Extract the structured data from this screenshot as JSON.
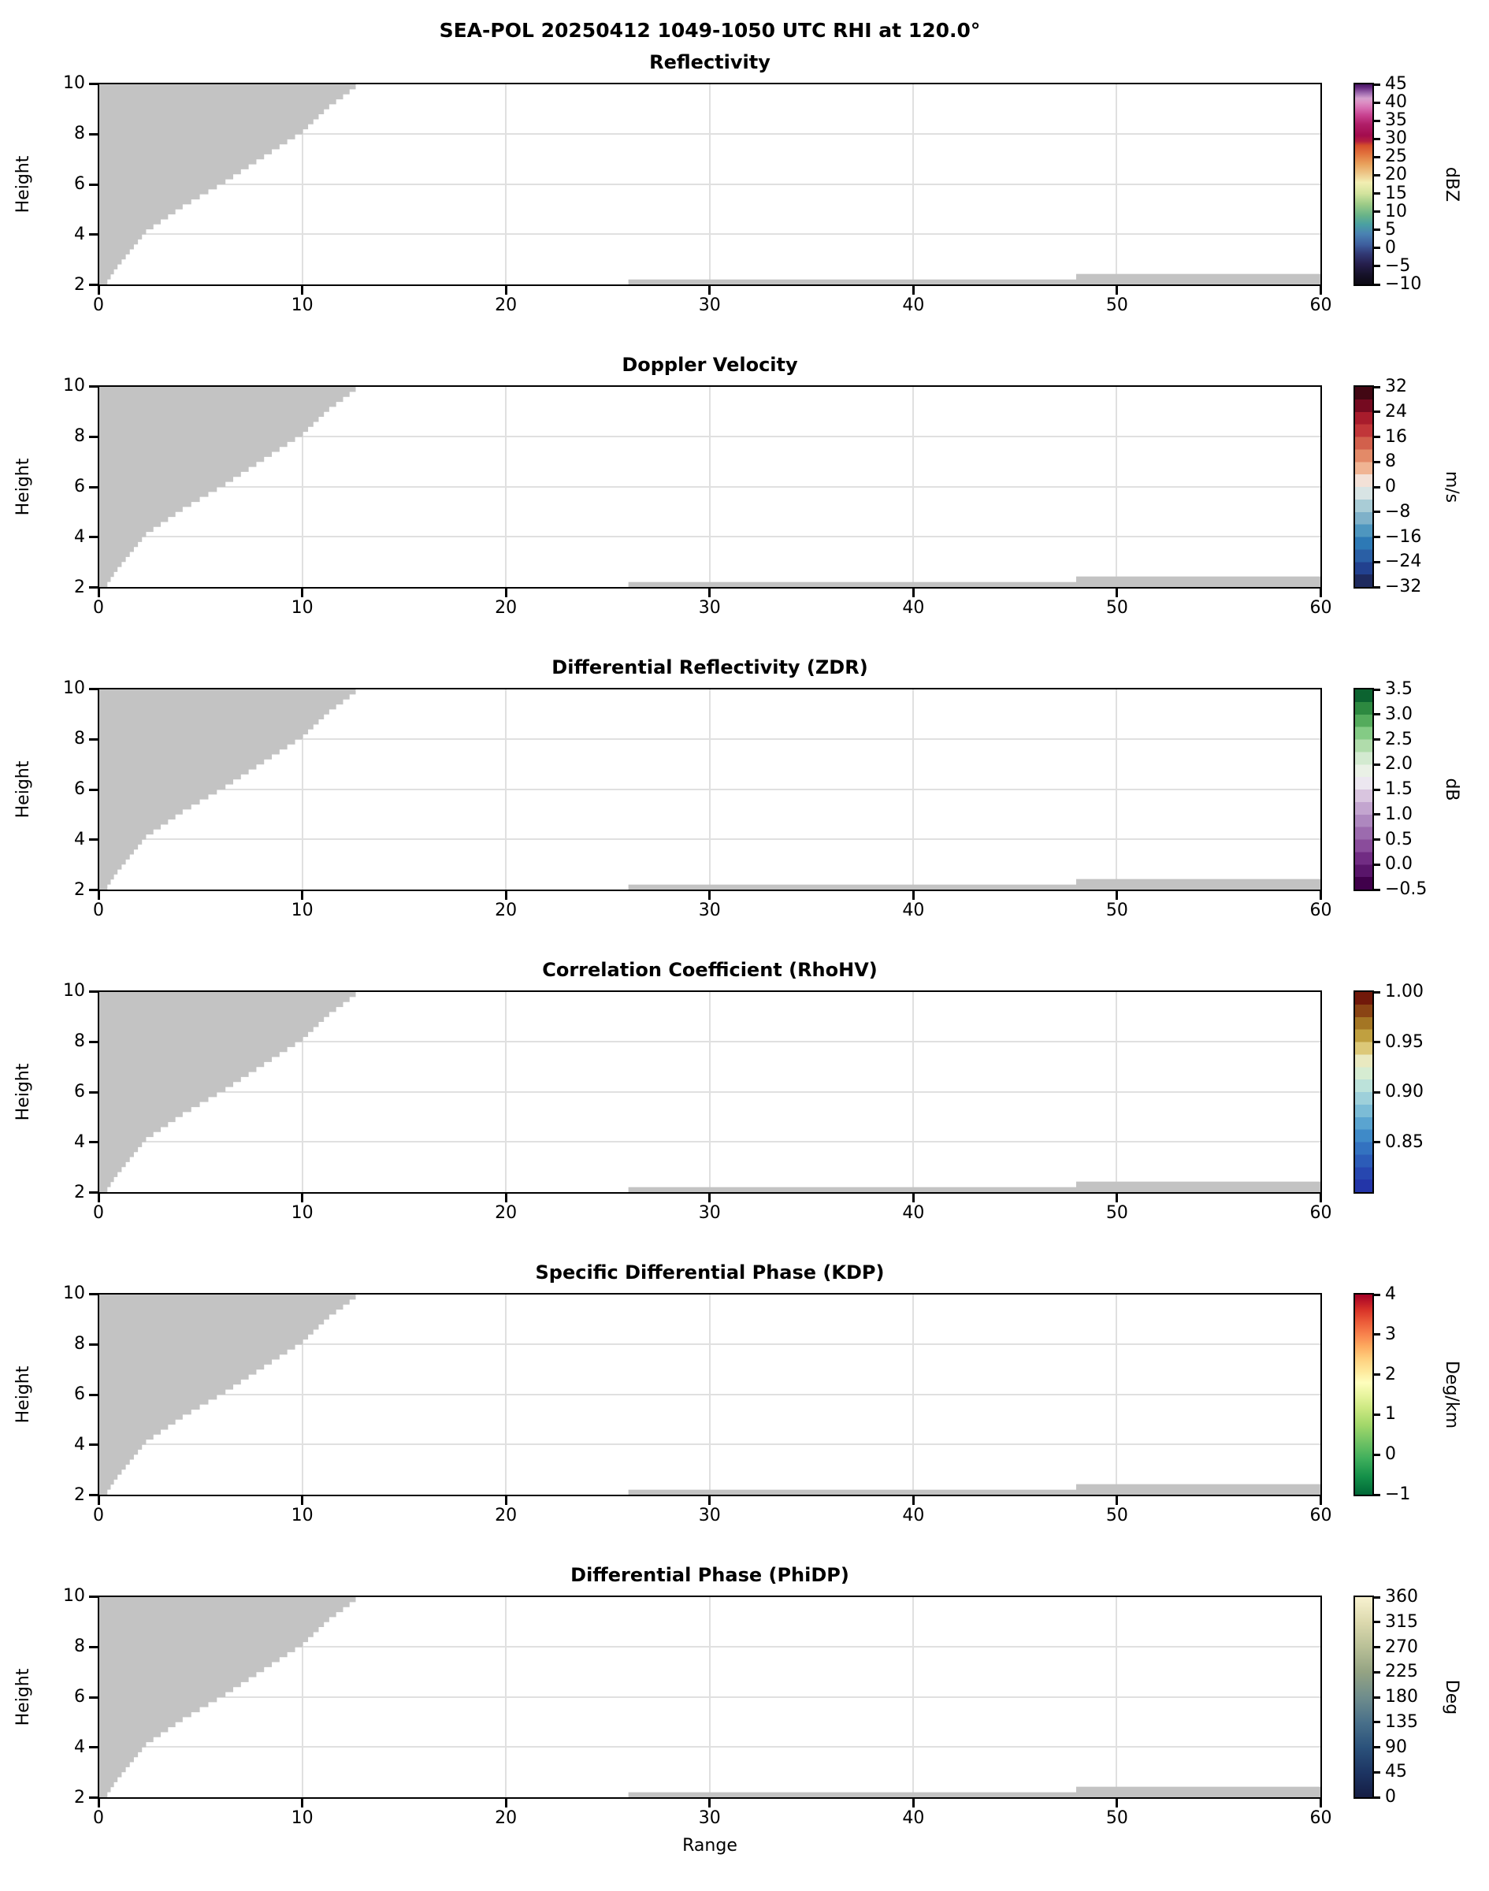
{
  "chart_data": {
    "type": "heatmap",
    "suptitle": "SEA-POL 20250412 1049-1050 UTC RHI at 120.0°",
    "xlabel": "Range",
    "ylabel": "Height",
    "xlim": [
      0,
      60
    ],
    "ylim": [
      2,
      10
    ],
    "x_ticks": [
      0,
      10,
      20,
      30,
      40,
      50,
      60
    ],
    "y_ticks": [
      2,
      4,
      6,
      8,
      10
    ],
    "grid": true,
    "background": "#ffffff",
    "nodata_color": "#c3c3c3",
    "nodata_regions": {
      "wedge_boundary_x_by_height": [
        [
          0.4,
          2
        ],
        [
          0.8,
          2.5
        ],
        [
          1.3,
          3
        ],
        [
          2.3,
          4
        ],
        [
          4.1,
          5
        ],
        [
          6.2,
          6
        ],
        [
          8.1,
          7
        ],
        [
          10.0,
          8
        ],
        [
          11.3,
          9
        ],
        [
          12.15,
          9.5
        ],
        [
          12.9,
          10
        ]
      ],
      "wedge_step_dh": 0.2,
      "bottom_strips": [
        {
          "x0": 26,
          "x1": 48,
          "h0": 2,
          "h1": 2.2
        },
        {
          "x0": 48,
          "x1": 60,
          "h0": 2,
          "h1": 2.42
        }
      ]
    },
    "panels": [
      {
        "title": "Reflectivity",
        "unit": "dBZ",
        "colorbar": {
          "range": [
            -10,
            45
          ],
          "ticks": [
            {
              "label": "45",
              "value": 45
            },
            {
              "label": "40",
              "value": 40
            },
            {
              "label": "35",
              "value": 35
            },
            {
              "label": "30",
              "value": 30
            },
            {
              "label": "25",
              "value": 25
            },
            {
              "label": "20",
              "value": 20
            },
            {
              "label": "15",
              "value": 15
            },
            {
              "label": "10",
              "value": 10
            },
            {
              "label": "5",
              "value": 5
            },
            {
              "label": "0",
              "value": 0
            },
            {
              "label": "−5",
              "value": -5
            },
            {
              "label": "−10",
              "value": -10
            }
          ],
          "gradient_stops": [
            [
              0,
              "#0c0a13"
            ],
            [
              0.045,
              "#151127"
            ],
            [
              0.1,
              "#251e4b"
            ],
            [
              0.155,
              "#323a76"
            ],
            [
              0.2,
              "#3e5f9f"
            ],
            [
              0.253,
              "#4a82b2"
            ],
            [
              0.3,
              "#4aa0a2"
            ],
            [
              0.345,
              "#68b388"
            ],
            [
              0.4,
              "#9ccb87"
            ],
            [
              0.455,
              "#d3e49e"
            ],
            [
              0.51,
              "#f2eeb2"
            ],
            [
              0.545,
              "#eecf92"
            ],
            [
              0.6,
              "#e9a35d"
            ],
            [
              0.655,
              "#e1713c"
            ],
            [
              0.695,
              "#d54e2c"
            ],
            [
              0.715,
              "#b51f3f"
            ],
            [
              0.745,
              "#a30c4e"
            ],
            [
              0.8,
              "#b01e68"
            ],
            [
              0.845,
              "#c8418f"
            ],
            [
              0.88,
              "#d66cb0"
            ],
            [
              0.91,
              "#dd8fc4"
            ],
            [
              0.93,
              "#d49fcd"
            ],
            [
              0.955,
              "#a06cb0"
            ],
            [
              0.98,
              "#6e3187"
            ],
            [
              1,
              "#451461"
            ]
          ]
        }
      },
      {
        "title": "Doppler Velocity",
        "unit": "m/s",
        "colorbar": {
          "range": [
            -32,
            32
          ],
          "ticks": [
            {
              "label": "32",
              "value": 32
            },
            {
              "label": "24",
              "value": 24
            },
            {
              "label": "16",
              "value": 16
            },
            {
              "label": "8",
              "value": 8
            },
            {
              "label": "0",
              "value": 0
            },
            {
              "label": "−8",
              "value": -8
            },
            {
              "label": "−16",
              "value": -16
            },
            {
              "label": "−24",
              "value": -24
            },
            {
              "label": "−32",
              "value": -32
            }
          ],
          "discrete_levels": [
            "#1e2a5e",
            "#22418f",
            "#2a5fa5",
            "#2d79b5",
            "#4e96bf",
            "#7fb1c9",
            "#a9ccd6",
            "#d8e4e4",
            "#f3e1d7",
            "#f0b493",
            "#e38a68",
            "#d2604c",
            "#c13639",
            "#a81c2c",
            "#750a20",
            "#420713"
          ]
        }
      },
      {
        "title": "Differential Reflectivity (ZDR)",
        "unit": "dB",
        "colorbar": {
          "range": [
            -0.5,
            3.5
          ],
          "ticks": [
            {
              "label": "3.5",
              "value": 3.5
            },
            {
              "label": "3.0",
              "value": 3.0
            },
            {
              "label": "2.5",
              "value": 2.5
            },
            {
              "label": "2.0",
              "value": 2.0
            },
            {
              "label": "1.5",
              "value": 1.5
            },
            {
              "label": "1.0",
              "value": 1.0
            },
            {
              "label": "0.5",
              "value": 0.5
            },
            {
              "label": "0.0",
              "value": 0.0
            },
            {
              "label": "−0.5",
              "value": -0.5
            }
          ],
          "discrete_levels": [
            "#40004b",
            "#59156a",
            "#712c83",
            "#8a4c9b",
            "#9c6bae",
            "#ae88bf",
            "#c3a5cf",
            "#d9c5df",
            "#ece7f0",
            "#eaf1e6",
            "#d3ead0",
            "#b0dcab",
            "#84cb85",
            "#54ab5c",
            "#2d8940",
            "#0c6330"
          ]
        }
      },
      {
        "title": "Correlation Coefficient (RhoHV)",
        "unit": "",
        "colorbar": {
          "range": [
            0.8,
            1.0
          ],
          "ticks": [
            {
              "label": "1.00",
              "value": 1.0
            },
            {
              "label": "0.95",
              "value": 0.95
            },
            {
              "label": "0.90",
              "value": 0.9
            },
            {
              "label": "0.85",
              "value": 0.85
            }
          ],
          "discrete_levels": [
            "#2335a8",
            "#2747b0",
            "#2c5cb8",
            "#3372c0",
            "#3f8ac8",
            "#5aa4d0",
            "#7cbcd6",
            "#9ed0da",
            "#bce2da",
            "#d6ecd2",
            "#e9e9c0",
            "#dcc878",
            "#c0a040",
            "#a47624",
            "#8a4414",
            "#71190a"
          ]
        }
      },
      {
        "title": "Specific Differential Phase (KDP)",
        "unit": "Deg/km",
        "colorbar": {
          "range": [
            -1,
            4
          ],
          "ticks": [
            {
              "label": "4",
              "value": 4
            },
            {
              "label": "3",
              "value": 3
            },
            {
              "label": "2",
              "value": 2
            },
            {
              "label": "1",
              "value": 1
            },
            {
              "label": "0",
              "value": 0
            },
            {
              "label": "−1",
              "value": -1
            }
          ],
          "gradient_stops": [
            [
              0,
              "#006837"
            ],
            [
              0.09,
              "#149049"
            ],
            [
              0.18,
              "#3faf5c"
            ],
            [
              0.27,
              "#74c465"
            ],
            [
              0.35,
              "#a3d86a"
            ],
            [
              0.43,
              "#cbe881"
            ],
            [
              0.5,
              "#e9f5a0"
            ],
            [
              0.56,
              "#fefebd"
            ],
            [
              0.62,
              "#fee79a"
            ],
            [
              0.68,
              "#fecf7e"
            ],
            [
              0.74,
              "#fdab60"
            ],
            [
              0.8,
              "#f8834d"
            ],
            [
              0.86,
              "#ec5e3a"
            ],
            [
              0.92,
              "#d93529"
            ],
            [
              1,
              "#a50026"
            ]
          ]
        }
      },
      {
        "title": "Differential Phase (PhiDP)",
        "unit": "Deg",
        "colorbar": {
          "range": [
            0,
            360
          ],
          "ticks": [
            {
              "label": "360",
              "value": 360
            },
            {
              "label": "315",
              "value": 315
            },
            {
              "label": "270",
              "value": 270
            },
            {
              "label": "225",
              "value": 225
            },
            {
              "label": "180",
              "value": 180
            },
            {
              "label": "135",
              "value": 135
            },
            {
              "label": "90",
              "value": 90
            },
            {
              "label": "45",
              "value": 45
            },
            {
              "label": "0",
              "value": 0
            }
          ],
          "gradient_stops": [
            [
              0,
              "#151d44"
            ],
            [
              0.125,
              "#1d3563"
            ],
            [
              0.25,
              "#2b527b"
            ],
            [
              0.375,
              "#49708a"
            ],
            [
              0.5,
              "#6f8d8c"
            ],
            [
              0.625,
              "#94a383"
            ],
            [
              0.75,
              "#b9c097"
            ],
            [
              0.875,
              "#dcd9ae"
            ],
            [
              1,
              "#f8f2d0"
            ]
          ]
        }
      }
    ]
  }
}
